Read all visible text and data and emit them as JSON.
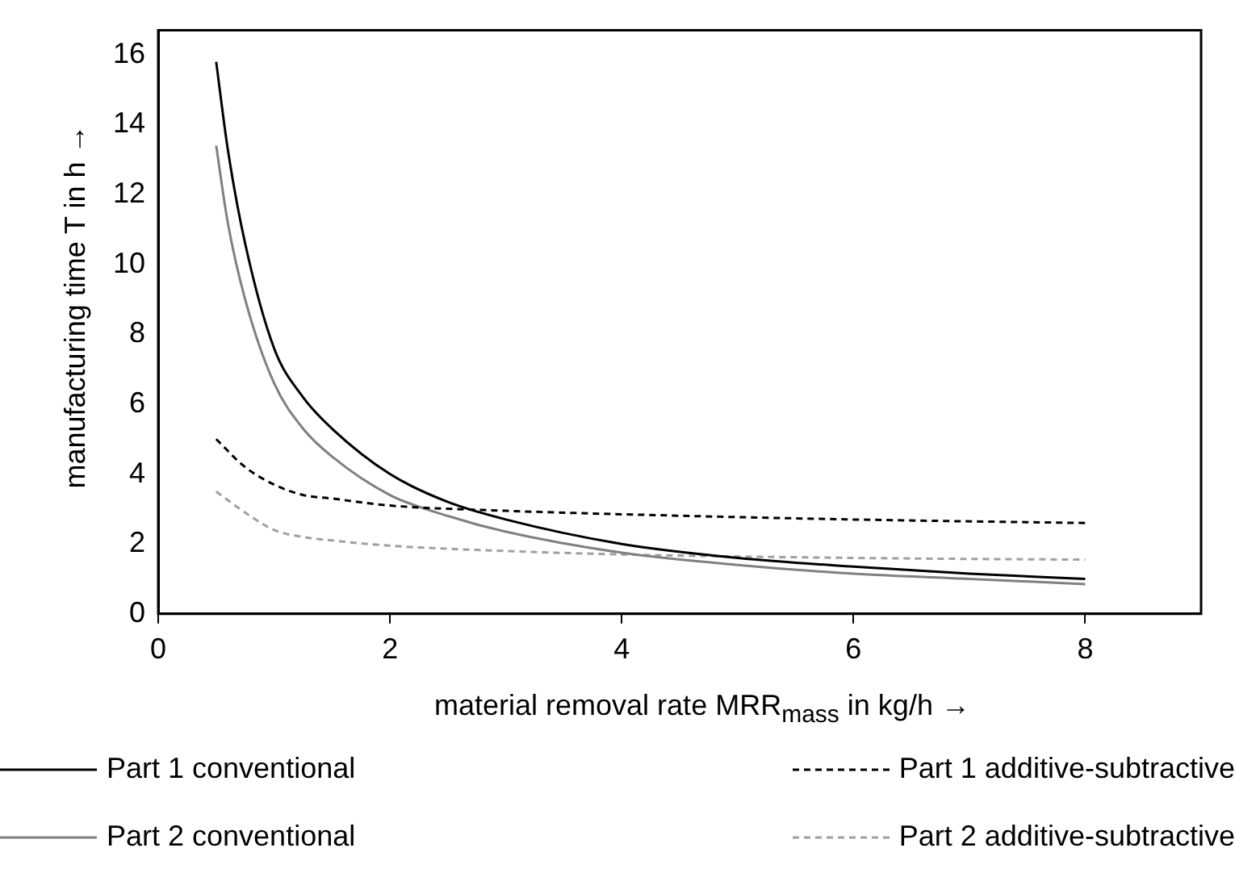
{
  "chart_data": {
    "type": "line",
    "xlabel": "material removal rate MRR$_{mass}$ in kg/h →",
    "ylabel": "manufacturing time T in h →",
    "xlim": [
      0,
      9
    ],
    "xticks": [
      0,
      2,
      4,
      6,
      8
    ],
    "ylim": [
      0,
      16.7
    ],
    "yticks": [
      0,
      2,
      4,
      6,
      8,
      10,
      12,
      14,
      16
    ],
    "grid": false,
    "legend": "bottom",
    "marker": "none",
    "series": [
      {
        "name": "Part 1 conventional",
        "color": "#000000",
        "line_style": "solid",
        "x": [
          0.5,
          0.6,
          0.75,
          1.0,
          1.25,
          1.5,
          2,
          2.5,
          3,
          4,
          5,
          6,
          7,
          8
        ],
        "values": [
          15.8,
          13.3,
          10.6,
          7.6,
          6.2,
          5.3,
          4.0,
          3.2,
          2.7,
          2.0,
          1.6,
          1.35,
          1.15,
          1.0
        ]
      },
      {
        "name": "Part 1 additive-subtractive",
        "color": "#000000",
        "line_style": "dashed",
        "x": [
          0.5,
          0.75,
          1.0,
          1.25,
          1.5,
          2,
          3,
          4,
          6,
          8
        ],
        "values": [
          5.0,
          4.2,
          3.7,
          3.4,
          3.3,
          3.1,
          2.95,
          2.85,
          2.7,
          2.6
        ]
      },
      {
        "name": "Part 2 conventional",
        "color": "#808080",
        "line_style": "solid",
        "x": [
          0.5,
          0.6,
          0.75,
          1.0,
          1.25,
          1.5,
          2,
          2.5,
          3,
          4,
          5,
          6,
          7,
          8
        ],
        "values": [
          13.4,
          11.2,
          9.0,
          6.6,
          5.3,
          4.5,
          3.4,
          2.8,
          2.35,
          1.75,
          1.4,
          1.15,
          1.0,
          0.85
        ]
      },
      {
        "name": "Part 2 additive-subtractive",
        "color": "#a0a0a0",
        "line_style": "dashed",
        "x": [
          0.5,
          0.75,
          1.0,
          1.25,
          1.5,
          2,
          3,
          4,
          6,
          8
        ],
        "values": [
          3.5,
          2.9,
          2.4,
          2.2,
          2.1,
          1.95,
          1.8,
          1.7,
          1.6,
          1.55
        ]
      }
    ]
  }
}
